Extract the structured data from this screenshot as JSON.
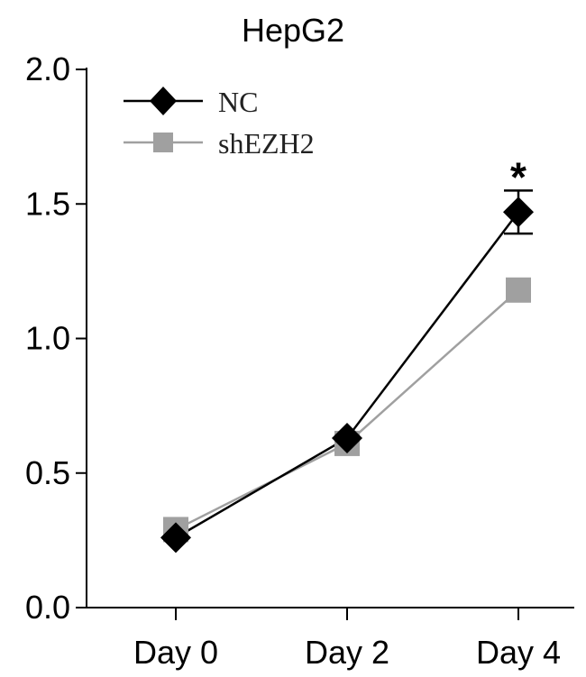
{
  "chart_data": {
    "type": "line",
    "title": "HepG2",
    "xlabel": "",
    "ylabel": "",
    "categories": [
      "Day 0",
      "Day 2",
      "Day 4"
    ],
    "ylim": [
      0,
      2.0
    ],
    "yticks": [
      "0.0",
      "0.5",
      "1.0",
      "1.5",
      "2.0"
    ],
    "yticks_values": [
      0,
      0.5,
      1.0,
      1.5,
      2.0
    ],
    "grid": false,
    "legend_position": "top-left",
    "series": [
      {
        "name": "NC",
        "values": [
          0.26,
          0.63,
          1.47
        ],
        "error": [
          0,
          0,
          0.08
        ],
        "color": "#000000",
        "marker": "diamond"
      },
      {
        "name": "shEZH2",
        "values": [
          0.29,
          0.61,
          1.18
        ],
        "error": [
          0,
          0,
          0
        ],
        "color": "#a0a0a0",
        "marker": "square"
      }
    ],
    "annotations": [
      {
        "text": "*",
        "category": "Day 4",
        "y": 1.62
      }
    ]
  }
}
